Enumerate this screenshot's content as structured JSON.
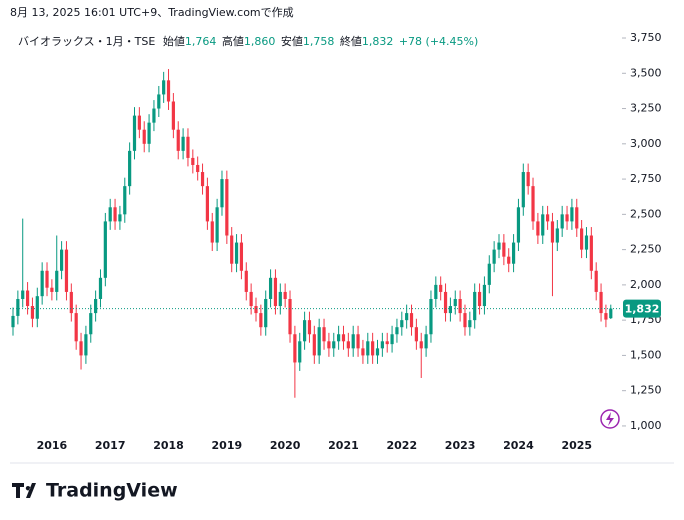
{
  "header": {
    "caption": "8月 13, 2025 16:01 UTC+9、TradingView.comで作成",
    "symbol": "バイオラックス・1月・TSE",
    "open_label": "始値",
    "open": "1,764",
    "high_label": "高値",
    "high": "1,860",
    "low_label": "安値",
    "low": "1,758",
    "close_label": "終値",
    "close": "1,832",
    "change": "+78 (+4.45%)",
    "price_tag": "1,832"
  },
  "logo": "TradingView",
  "chart_data": {
    "type": "candlestick",
    "up_color": "#089981",
    "down_color": "#f23645",
    "categories": [
      null,
      null,
      null,
      null,
      null,
      null,
      null,
      null,
      "2016",
      null,
      null,
      null,
      null,
      null,
      null,
      null,
      null,
      null,
      null,
      null,
      "2017",
      null,
      null,
      null,
      null,
      null,
      null,
      null,
      null,
      null,
      null,
      null,
      "2018",
      null,
      null,
      null,
      null,
      null,
      null,
      null,
      null,
      null,
      null,
      null,
      "2019",
      null,
      null,
      null,
      null,
      null,
      null,
      null,
      null,
      null,
      null,
      null,
      "2020",
      null,
      null,
      null,
      null,
      null,
      null,
      null,
      null,
      null,
      null,
      null,
      "2021",
      null,
      null,
      null,
      null,
      null,
      null,
      null,
      null,
      null,
      null,
      null,
      "2022",
      null,
      null,
      null,
      null,
      null,
      null,
      null,
      null,
      null,
      null,
      null,
      "2023",
      null,
      null,
      null,
      null,
      null,
      null,
      null,
      null,
      null,
      null,
      null,
      "2024",
      null,
      null,
      null,
      null,
      null,
      null,
      null,
      null,
      null,
      null,
      null,
      "2025",
      null,
      null,
      null,
      null,
      null,
      null,
      null
    ],
    "open": [
      1700,
      1780,
      1900,
      1960,
      1850,
      1760,
      1920,
      2100,
      1980,
      1950,
      2100,
      2250,
      1950,
      1800,
      1600,
      1500,
      1650,
      1800,
      1900,
      2050,
      2450,
      2550,
      2450,
      2500,
      2700,
      2950,
      3200,
      3100,
      3000,
      3150,
      3250,
      3350,
      3450,
      3300,
      3100,
      2950,
      3050,
      2900,
      2850,
      2800,
      2700,
      2450,
      2300,
      2550,
      2750,
      2350,
      2150,
      2300,
      2100,
      1950,
      1850,
      1800,
      1700,
      1900,
      2050,
      1850,
      1950,
      1900,
      1650,
      1450,
      1600,
      1750,
      1650,
      1500,
      1700,
      1600,
      1550,
      1600,
      1650,
      1600,
      1550,
      1650,
      1550,
      1500,
      1600,
      1500,
      1550,
      1600,
      1580,
      1650,
      1700,
      1750,
      1800,
      1700,
      1600,
      1550,
      1650,
      1900,
      2000,
      1950,
      1800,
      1850,
      1900,
      1800,
      1700,
      1750,
      1950,
      1850,
      2000,
      2150,
      2250,
      2300,
      2200,
      2150,
      2300,
      2550,
      2800,
      2700,
      2450,
      2350,
      2500,
      2450,
      2300,
      2400,
      2500,
      2450,
      2550,
      2400,
      2250,
      2350,
      2100,
      1950,
      1800,
      1764
    ],
    "high": [
      1840,
      1960,
      2470,
      2020,
      1910,
      1980,
      2160,
      2160,
      2040,
      2350,
      2310,
      2310,
      2010,
      1860,
      1660,
      1710,
      1860,
      1960,
      2110,
      2510,
      2610,
      2610,
      2560,
      2760,
      3010,
      3260,
      3260,
      3160,
      3210,
      3310,
      3410,
      3510,
      3530,
      3360,
      3160,
      3110,
      3110,
      2960,
      2910,
      2860,
      2760,
      2510,
      2610,
      2810,
      2810,
      2410,
      2360,
      2360,
      2160,
      2010,
      1910,
      1860,
      1960,
      2110,
      2110,
      2010,
      2010,
      1960,
      1710,
      1660,
      1810,
      1810,
      1710,
      1760,
      1760,
      1660,
      1660,
      1710,
      1710,
      1660,
      1710,
      1710,
      1610,
      1660,
      1660,
      1610,
      1660,
      1660,
      1710,
      1760,
      1810,
      1860,
      1860,
      1760,
      1660,
      1710,
      1960,
      2060,
      2060,
      2010,
      1910,
      1960,
      1960,
      1860,
      1810,
      2010,
      2010,
      2060,
      2210,
      2310,
      2360,
      2360,
      2260,
      2360,
      2610,
      2860,
      2860,
      2760,
      2510,
      2560,
      2560,
      2510,
      2460,
      2560,
      2560,
      2610,
      2610,
      2460,
      2410,
      2410,
      2160,
      2010,
      1860,
      1860
    ],
    "low": [
      1640,
      1720,
      1840,
      1790,
      1700,
      1700,
      1860,
      1920,
      1890,
      1890,
      2040,
      1890,
      1740,
      1540,
      1400,
      1440,
      1590,
      1740,
      1840,
      1990,
      2390,
      2390,
      2390,
      2440,
      2640,
      2890,
      3040,
      2940,
      2940,
      3090,
      3190,
      3290,
      3240,
      3040,
      2890,
      2890,
      2840,
      2790,
      2740,
      2640,
      2390,
      2240,
      2240,
      2490,
      2290,
      2090,
      2090,
      2040,
      1890,
      1790,
      1740,
      1640,
      1640,
      1840,
      1790,
      1790,
      1840,
      1590,
      1200,
      1390,
      1540,
      1590,
      1440,
      1440,
      1540,
      1490,
      1490,
      1540,
      1540,
      1490,
      1490,
      1490,
      1440,
      1440,
      1440,
      1440,
      1490,
      1520,
      1520,
      1590,
      1640,
      1690,
      1640,
      1540,
      1340,
      1490,
      1590,
      1840,
      1890,
      1740,
      1740,
      1790,
      1740,
      1640,
      1640,
      1690,
      1790,
      1790,
      1940,
      2090,
      2190,
      2140,
      2090,
      2090,
      2240,
      2490,
      2640,
      2390,
      2290,
      2290,
      2390,
      1920,
      2240,
      2340,
      2390,
      2390,
      2340,
      2190,
      2190,
      2040,
      1890,
      1740,
      1700,
      1758
    ],
    "close": [
      1780,
      1900,
      1960,
      1850,
      1760,
      1920,
      2100,
      1980,
      1950,
      2100,
      2250,
      1950,
      1800,
      1600,
      1500,
      1650,
      1800,
      1900,
      2050,
      2450,
      2550,
      2450,
      2500,
      2700,
      2950,
      3200,
      3100,
      3000,
      3150,
      3250,
      3350,
      3450,
      3300,
      3100,
      2950,
      3050,
      2900,
      2850,
      2800,
      2700,
      2450,
      2300,
      2550,
      2750,
      2350,
      2150,
      2300,
      2100,
      1950,
      1850,
      1800,
      1700,
      1900,
      2050,
      1850,
      1950,
      1900,
      1650,
      1450,
      1600,
      1750,
      1650,
      1500,
      1700,
      1600,
      1550,
      1600,
      1650,
      1600,
      1550,
      1650,
      1550,
      1500,
      1600,
      1500,
      1550,
      1600,
      1580,
      1650,
      1700,
      1750,
      1800,
      1700,
      1600,
      1550,
      1650,
      1900,
      2000,
      1950,
      1800,
      1850,
      1900,
      1800,
      1700,
      1750,
      1950,
      1850,
      2000,
      2150,
      2250,
      2300,
      2200,
      2150,
      2300,
      2550,
      2800,
      2700,
      2450,
      2350,
      2500,
      2450,
      2300,
      2400,
      2500,
      2450,
      2550,
      2400,
      2250,
      2350,
      2100,
      1950,
      1800,
      1754,
      1832
    ],
    "ylim": [
      950,
      3821
    ],
    "yticks": [
      {
        "value": 1000,
        "label": "1,000"
      },
      {
        "value": 1250,
        "label": "1,250"
      },
      {
        "value": 1500,
        "label": "1,500"
      },
      {
        "value": 1750,
        "label": "1,750"
      },
      {
        "value": 2000,
        "label": "2,000"
      },
      {
        "value": 2250,
        "label": "2,250"
      },
      {
        "value": 2500,
        "label": "2,500"
      },
      {
        "value": 2750,
        "label": "2,750"
      },
      {
        "value": 3000,
        "label": "3,000"
      },
      {
        "value": 3250,
        "label": "3,250"
      },
      {
        "value": 3500,
        "label": "3,500"
      },
      {
        "value": 3750,
        "label": "3,750"
      }
    ]
  }
}
